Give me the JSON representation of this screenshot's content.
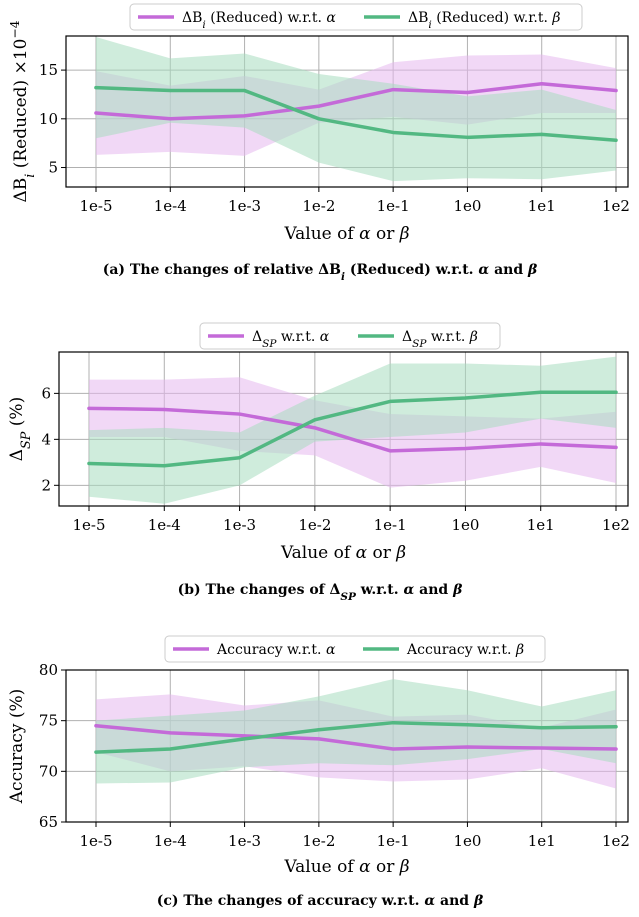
{
  "colors": {
    "alpha": "#c46ad8",
    "beta": "#52b882",
    "alpha_fill": "#e6b8ef",
    "beta_fill": "#a8ddc0",
    "grid": "#b0b0b0"
  },
  "chart_data": [
    {
      "type": "line",
      "categories": [
        "1e-5",
        "1e-4",
        "1e-3",
        "1e-2",
        "1e-1",
        "1e0",
        "1e1",
        "1e2"
      ],
      "xlabel": "Value of α or β",
      "ylabel": "ΔB_i (Reduced) ×10⁻⁴",
      "ylim": [
        3,
        18.5
      ],
      "yticks": [
        5,
        10,
        15
      ],
      "grid": true,
      "legend_position": "top-center",
      "caption": "(a) The changes of relative ΔB_i (Reduced) w.r.t. α and β",
      "series": [
        {
          "name": "ΔB_i (Reduced) w.r.t. α",
          "color_key": "alpha",
          "values": [
            10.6,
            10.0,
            10.3,
            11.3,
            13.0,
            12.7,
            13.6,
            12.9
          ],
          "lower": [
            6.3,
            6.6,
            6.2,
            9.6,
            10.2,
            9.4,
            10.6,
            10.6
          ],
          "upper": [
            14.9,
            13.4,
            14.4,
            13.0,
            15.8,
            16.5,
            16.6,
            15.2
          ]
        },
        {
          "name": "ΔB_i (Reduced) w.r.t. β",
          "color_key": "beta",
          "values": [
            13.2,
            12.9,
            12.9,
            10.0,
            8.6,
            8.1,
            8.4,
            7.8
          ],
          "lower": [
            8.0,
            9.6,
            9.1,
            5.5,
            3.6,
            3.9,
            3.8,
            4.7
          ],
          "upper": [
            18.4,
            16.2,
            16.7,
            14.6,
            13.6,
            12.3,
            13.0,
            10.9
          ]
        }
      ]
    },
    {
      "type": "line",
      "categories": [
        "1e-5",
        "1e-4",
        "1e-3",
        "1e-2",
        "1e-1",
        "1e0",
        "1e1",
        "1e2"
      ],
      "xlabel": "Value of α or β",
      "ylabel": "Δ_SP (%)",
      "ylim": [
        1.1,
        7.8
      ],
      "yticks": [
        2,
        4,
        6
      ],
      "grid": true,
      "legend_position": "top-center",
      "caption": "(b) The changes of Δ_SP w.r.t. α and β",
      "series": [
        {
          "name": "Δ_SP w.r.t. α",
          "color_key": "alpha",
          "values": [
            5.35,
            5.3,
            5.1,
            4.5,
            3.5,
            3.6,
            3.8,
            3.65
          ],
          "lower": [
            4.1,
            4.1,
            3.5,
            3.3,
            1.9,
            2.2,
            2.8,
            2.1
          ],
          "upper": [
            6.6,
            6.6,
            6.7,
            5.7,
            5.1,
            5.0,
            4.9,
            5.2
          ]
        },
        {
          "name": "Δ_SP w.r.t. β",
          "color_key": "beta",
          "values": [
            2.95,
            2.85,
            3.2,
            4.85,
            5.65,
            5.8,
            6.05,
            6.05
          ],
          "lower": [
            1.5,
            1.2,
            2.0,
            3.9,
            4.1,
            4.3,
            4.9,
            4.5
          ],
          "upper": [
            4.4,
            4.5,
            4.3,
            5.9,
            7.3,
            7.3,
            7.2,
            7.6
          ]
        }
      ]
    },
    {
      "type": "line",
      "categories": [
        "1e-5",
        "1e-4",
        "1e-3",
        "1e-2",
        "1e-1",
        "1e0",
        "1e1",
        "1e2"
      ],
      "xlabel": "Value of α or β",
      "ylabel": "Accuracy (%)",
      "ylim": [
        65,
        80
      ],
      "yticks": [
        65,
        70,
        75,
        80
      ],
      "grid": true,
      "legend_position": "top-center",
      "caption": "(c) The changes of accuracy w.r.t. α and β",
      "series": [
        {
          "name": "Accuracy w.r.t. α",
          "color_key": "alpha",
          "values": [
            74.5,
            73.8,
            73.5,
            73.2,
            72.2,
            72.4,
            72.3,
            72.2
          ],
          "lower": [
            71.9,
            70.0,
            70.5,
            69.4,
            69.0,
            69.2,
            70.3,
            68.3
          ],
          "upper": [
            77.1,
            77.6,
            76.5,
            77.0,
            75.4,
            75.6,
            74.3,
            76.1
          ]
        },
        {
          "name": "Accuracy w.r.t. β",
          "color_key": "beta",
          "values": [
            71.9,
            72.2,
            73.2,
            74.1,
            74.8,
            74.6,
            74.3,
            74.4
          ],
          "lower": [
            68.8,
            68.9,
            70.4,
            70.8,
            70.6,
            71.2,
            72.2,
            70.8
          ],
          "upper": [
            75.0,
            75.5,
            76.0,
            77.4,
            79.1,
            78.0,
            76.4,
            78.0
          ]
        }
      ]
    }
  ]
}
